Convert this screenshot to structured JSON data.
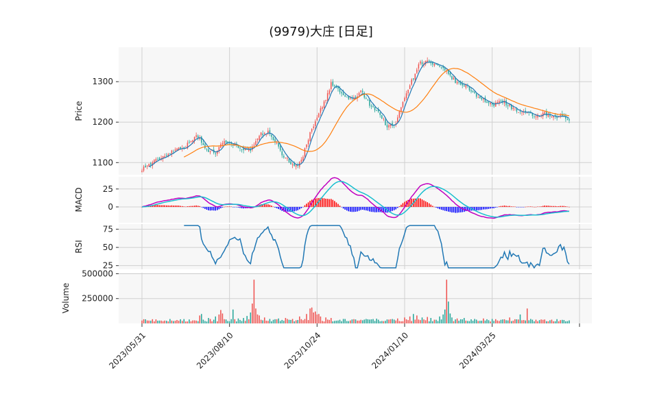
{
  "chart_data": {
    "type": "candlestick",
    "title": "(9979)大庄  [日足]",
    "colors": {
      "up": "#ef5350",
      "down": "#26a69a",
      "ma_short": "#1f77b4",
      "ma_long": "#ff7f0e",
      "macd": "#c000c0",
      "signal": "#17becf",
      "hist_pos": "#ff0000",
      "hist_neg": "#0000ff",
      "rsi": "#1f77b4",
      "vol_up": "#ef5350",
      "vol_down": "#26a69a",
      "grid": "#d0d0d0",
      "panel_bg": "#f7f7f7"
    },
    "x_labels": [
      "2023/05/31",
      "2023/08/10",
      "2023/10/24",
      "2024/01/10",
      "2024/03/25"
    ],
    "x_label_positions": [
      0,
      50,
      100,
      150,
      200
    ],
    "n_bars": 245,
    "price_panel": {
      "ylabel": "Price",
      "yticks": [
        1100,
        1200,
        1300
      ],
      "ylim": [
        1070,
        1385
      ],
      "close_keypoints": [
        [
          0,
          1085
        ],
        [
          8,
          1105
        ],
        [
          20,
          1135
        ],
        [
          25,
          1140
        ],
        [
          30,
          1165
        ],
        [
          33,
          1160
        ],
        [
          35,
          1140
        ],
        [
          38,
          1130
        ],
        [
          42,
          1125
        ],
        [
          45,
          1150
        ],
        [
          50,
          1150
        ],
        [
          55,
          1140
        ],
        [
          60,
          1130
        ],
        [
          63,
          1135
        ],
        [
          68,
          1170
        ],
        [
          72,
          1175
        ],
        [
          75,
          1160
        ],
        [
          80,
          1120
        ],
        [
          85,
          1100
        ],
        [
          88,
          1090
        ],
        [
          91,
          1105
        ],
        [
          95,
          1160
        ],
        [
          100,
          1215
        ],
        [
          105,
          1255
        ],
        [
          108,
          1295
        ],
        [
          112,
          1280
        ],
        [
          115,
          1265
        ],
        [
          120,
          1255
        ],
        [
          125,
          1275
        ],
        [
          130,
          1245
        ],
        [
          135,
          1225
        ],
        [
          140,
          1190
        ],
        [
          145,
          1195
        ],
        [
          150,
          1265
        ],
        [
          155,
          1310
        ],
        [
          158,
          1345
        ],
        [
          163,
          1350
        ],
        [
          170,
          1335
        ],
        [
          175,
          1320
        ],
        [
          180,
          1295
        ],
        [
          185,
          1290
        ],
        [
          190,
          1270
        ],
        [
          195,
          1255
        ],
        [
          200,
          1240
        ],
        [
          205,
          1255
        ],
        [
          210,
          1240
        ],
        [
          215,
          1225
        ],
        [
          220,
          1220
        ],
        [
          225,
          1215
        ],
        [
          230,
          1220
        ],
        [
          235,
          1210
        ],
        [
          240,
          1215
        ],
        [
          244,
          1205
        ]
      ],
      "ma_short_period": 5,
      "ma_long_period": 25
    },
    "macd_panel": {
      "ylabel": "MACD",
      "yticks": [
        0,
        25
      ],
      "ylim": [
        -22,
        42
      ]
    },
    "rsi_panel": {
      "ylabel": "RSI",
      "yticks": [
        25,
        50,
        75
      ],
      "ylim": [
        20,
        82
      ]
    },
    "volume_panel": {
      "ylabel": "Volume",
      "yticks": [
        250000,
        500000
      ],
      "ytick_labels": [
        "250000",
        "500000"
      ],
      "ylim": [
        0,
        510000
      ],
      "base_volume": 32000,
      "spikes": [
        [
          33,
          80000
        ],
        [
          34,
          95000
        ],
        [
          38,
          55000
        ],
        [
          42,
          70000
        ],
        [
          44,
          90000
        ],
        [
          45,
          135000
        ],
        [
          46,
          100000
        ],
        [
          52,
          140000
        ],
        [
          55,
          50000
        ],
        [
          58,
          55000
        ],
        [
          60,
          75000
        ],
        [
          62,
          110000
        ],
        [
          63,
          200000
        ],
        [
          64,
          440000
        ],
        [
          65,
          150000
        ],
        [
          66,
          90000
        ],
        [
          67,
          80000
        ],
        [
          70,
          60000
        ],
        [
          73,
          45000
        ],
        [
          78,
          50000
        ],
        [
          82,
          55000
        ],
        [
          86,
          45000
        ],
        [
          90,
          70000
        ],
        [
          94,
          95000
        ],
        [
          96,
          150000
        ],
        [
          97,
          160000
        ],
        [
          98,
          110000
        ],
        [
          99,
          120000
        ],
        [
          100,
          90000
        ],
        [
          101,
          95000
        ],
        [
          102,
          70000
        ],
        [
          105,
          60000
        ],
        [
          108,
          55000
        ],
        [
          115,
          45000
        ],
        [
          120,
          40000
        ],
        [
          128,
          45000
        ],
        [
          134,
          48000
        ],
        [
          140,
          40000
        ],
        [
          146,
          50000
        ],
        [
          150,
          60000
        ],
        [
          153,
          70000
        ],
        [
          155,
          95000
        ],
        [
          157,
          80000
        ],
        [
          160,
          60000
        ],
        [
          163,
          65000
        ],
        [
          165,
          55000
        ],
        [
          170,
          70000
        ],
        [
          172,
          90000
        ],
        [
          173,
          140000
        ],
        [
          174,
          440000
        ],
        [
          175,
          220000
        ],
        [
          176,
          100000
        ],
        [
          177,
          60000
        ],
        [
          180,
          50000
        ],
        [
          184,
          55000
        ],
        [
          190,
          45000
        ],
        [
          195,
          50000
        ],
        [
          200,
          45000
        ],
        [
          206,
          40000
        ],
        [
          210,
          60000
        ],
        [
          216,
          90000
        ],
        [
          220,
          150000
        ],
        [
          222,
          45000
        ],
        [
          228,
          40000
        ],
        [
          234,
          38000
        ],
        [
          240,
          36000
        ]
      ]
    }
  }
}
